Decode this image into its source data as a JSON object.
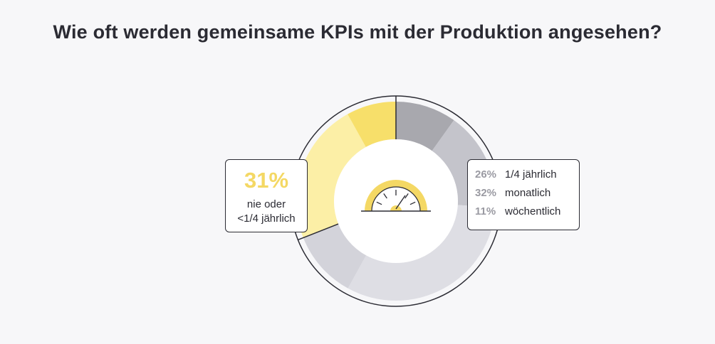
{
  "title": "Wie oft werden gemeinsame KPIs mit der Produktion angesehen?",
  "chart_data": {
    "type": "pie",
    "variant": "donut",
    "title": "Wie oft werden gemeinsame KPIs mit der Produktion angesehen?",
    "categories": [
      "1/4 jährlich",
      "monatlich",
      "wöchentlich",
      "nie oder <1/4 jährlich"
    ],
    "values": [
      26,
      32,
      11,
      31
    ],
    "highlight": {
      "value": "31%",
      "label_line1": "nie oder",
      "label_line2": "<1/4 jährlich"
    },
    "legend": [
      {
        "pct": "26%",
        "label": "1/4 jährlich"
      },
      {
        "pct": "32%",
        "label": "monatlich"
      },
      {
        "pct": "11%",
        "label": "wöchentlich"
      }
    ],
    "segment_colors": [
      "#a8a8ae",
      "#c4c4cb",
      "#dedee4",
      "#fcefa6",
      "#f7df6a"
    ],
    "highlight_color": "#f4d864",
    "gauge_icon": "speedometer-icon"
  }
}
